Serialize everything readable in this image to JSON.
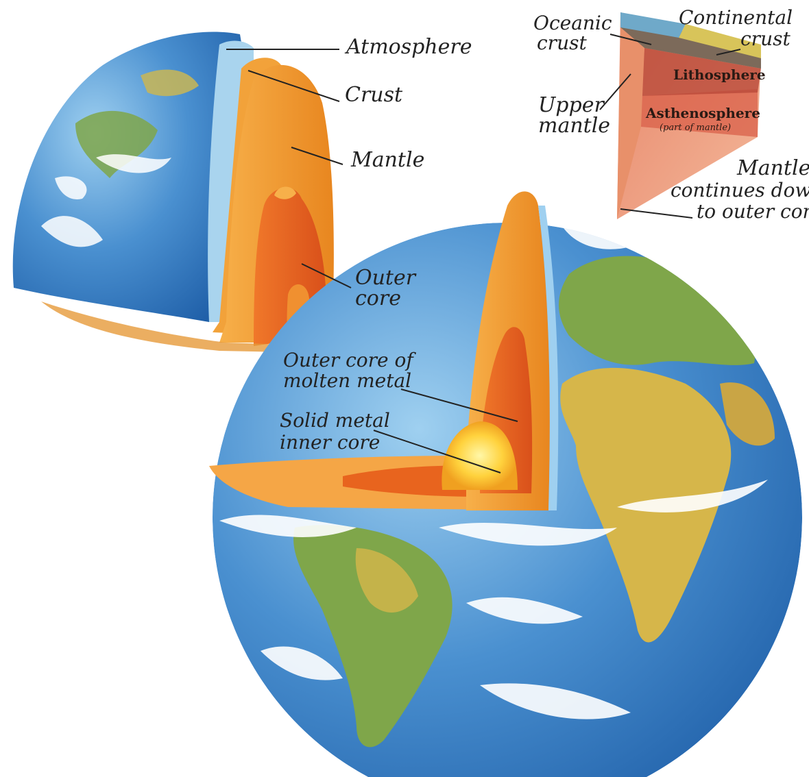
{
  "colors": {
    "ocean": "#3f86c9",
    "ocean_light": "#8ec3e8",
    "land_green": "#7fa64a",
    "land_yellow": "#d6b64a",
    "cloud": "#ffffff",
    "atmosphere": "#a9d4ee",
    "crust": "#f2a23a",
    "mantle": "#f39a2c",
    "outer_core": "#e8641e",
    "inner_core": "#ffd23d",
    "wedge_crust": "#c9855b",
    "wedge_lithosphere": "#d9604a",
    "wedge_asthenosphere": "#e8866a",
    "leader": "#222222"
  },
  "labels": {
    "atmosphere": "Atmosphere",
    "crust": "Crust",
    "mantle": "Mantle",
    "outer_core_l1": "Outer",
    "outer_core_l2": "core",
    "oceanic_l1": "Oceanic",
    "oceanic_l2": "crust",
    "continental_l1": "Continental",
    "continental_l2": "crust",
    "lithosphere": "Lithosphere",
    "upper_mantle_l1": "Upper",
    "upper_mantle_l2": "mantle",
    "asthenosphere": "Asthenosphere",
    "asthenosphere_note": "(part of mantle)",
    "mantle_continues_l1": "Mantle",
    "mantle_continues_l2": "continues down",
    "mantle_continues_l3": "to outer core",
    "molten_l1": "Outer core of",
    "molten_l2": "molten metal",
    "solid_l1": "Solid metal",
    "solid_l2": "inner core"
  }
}
